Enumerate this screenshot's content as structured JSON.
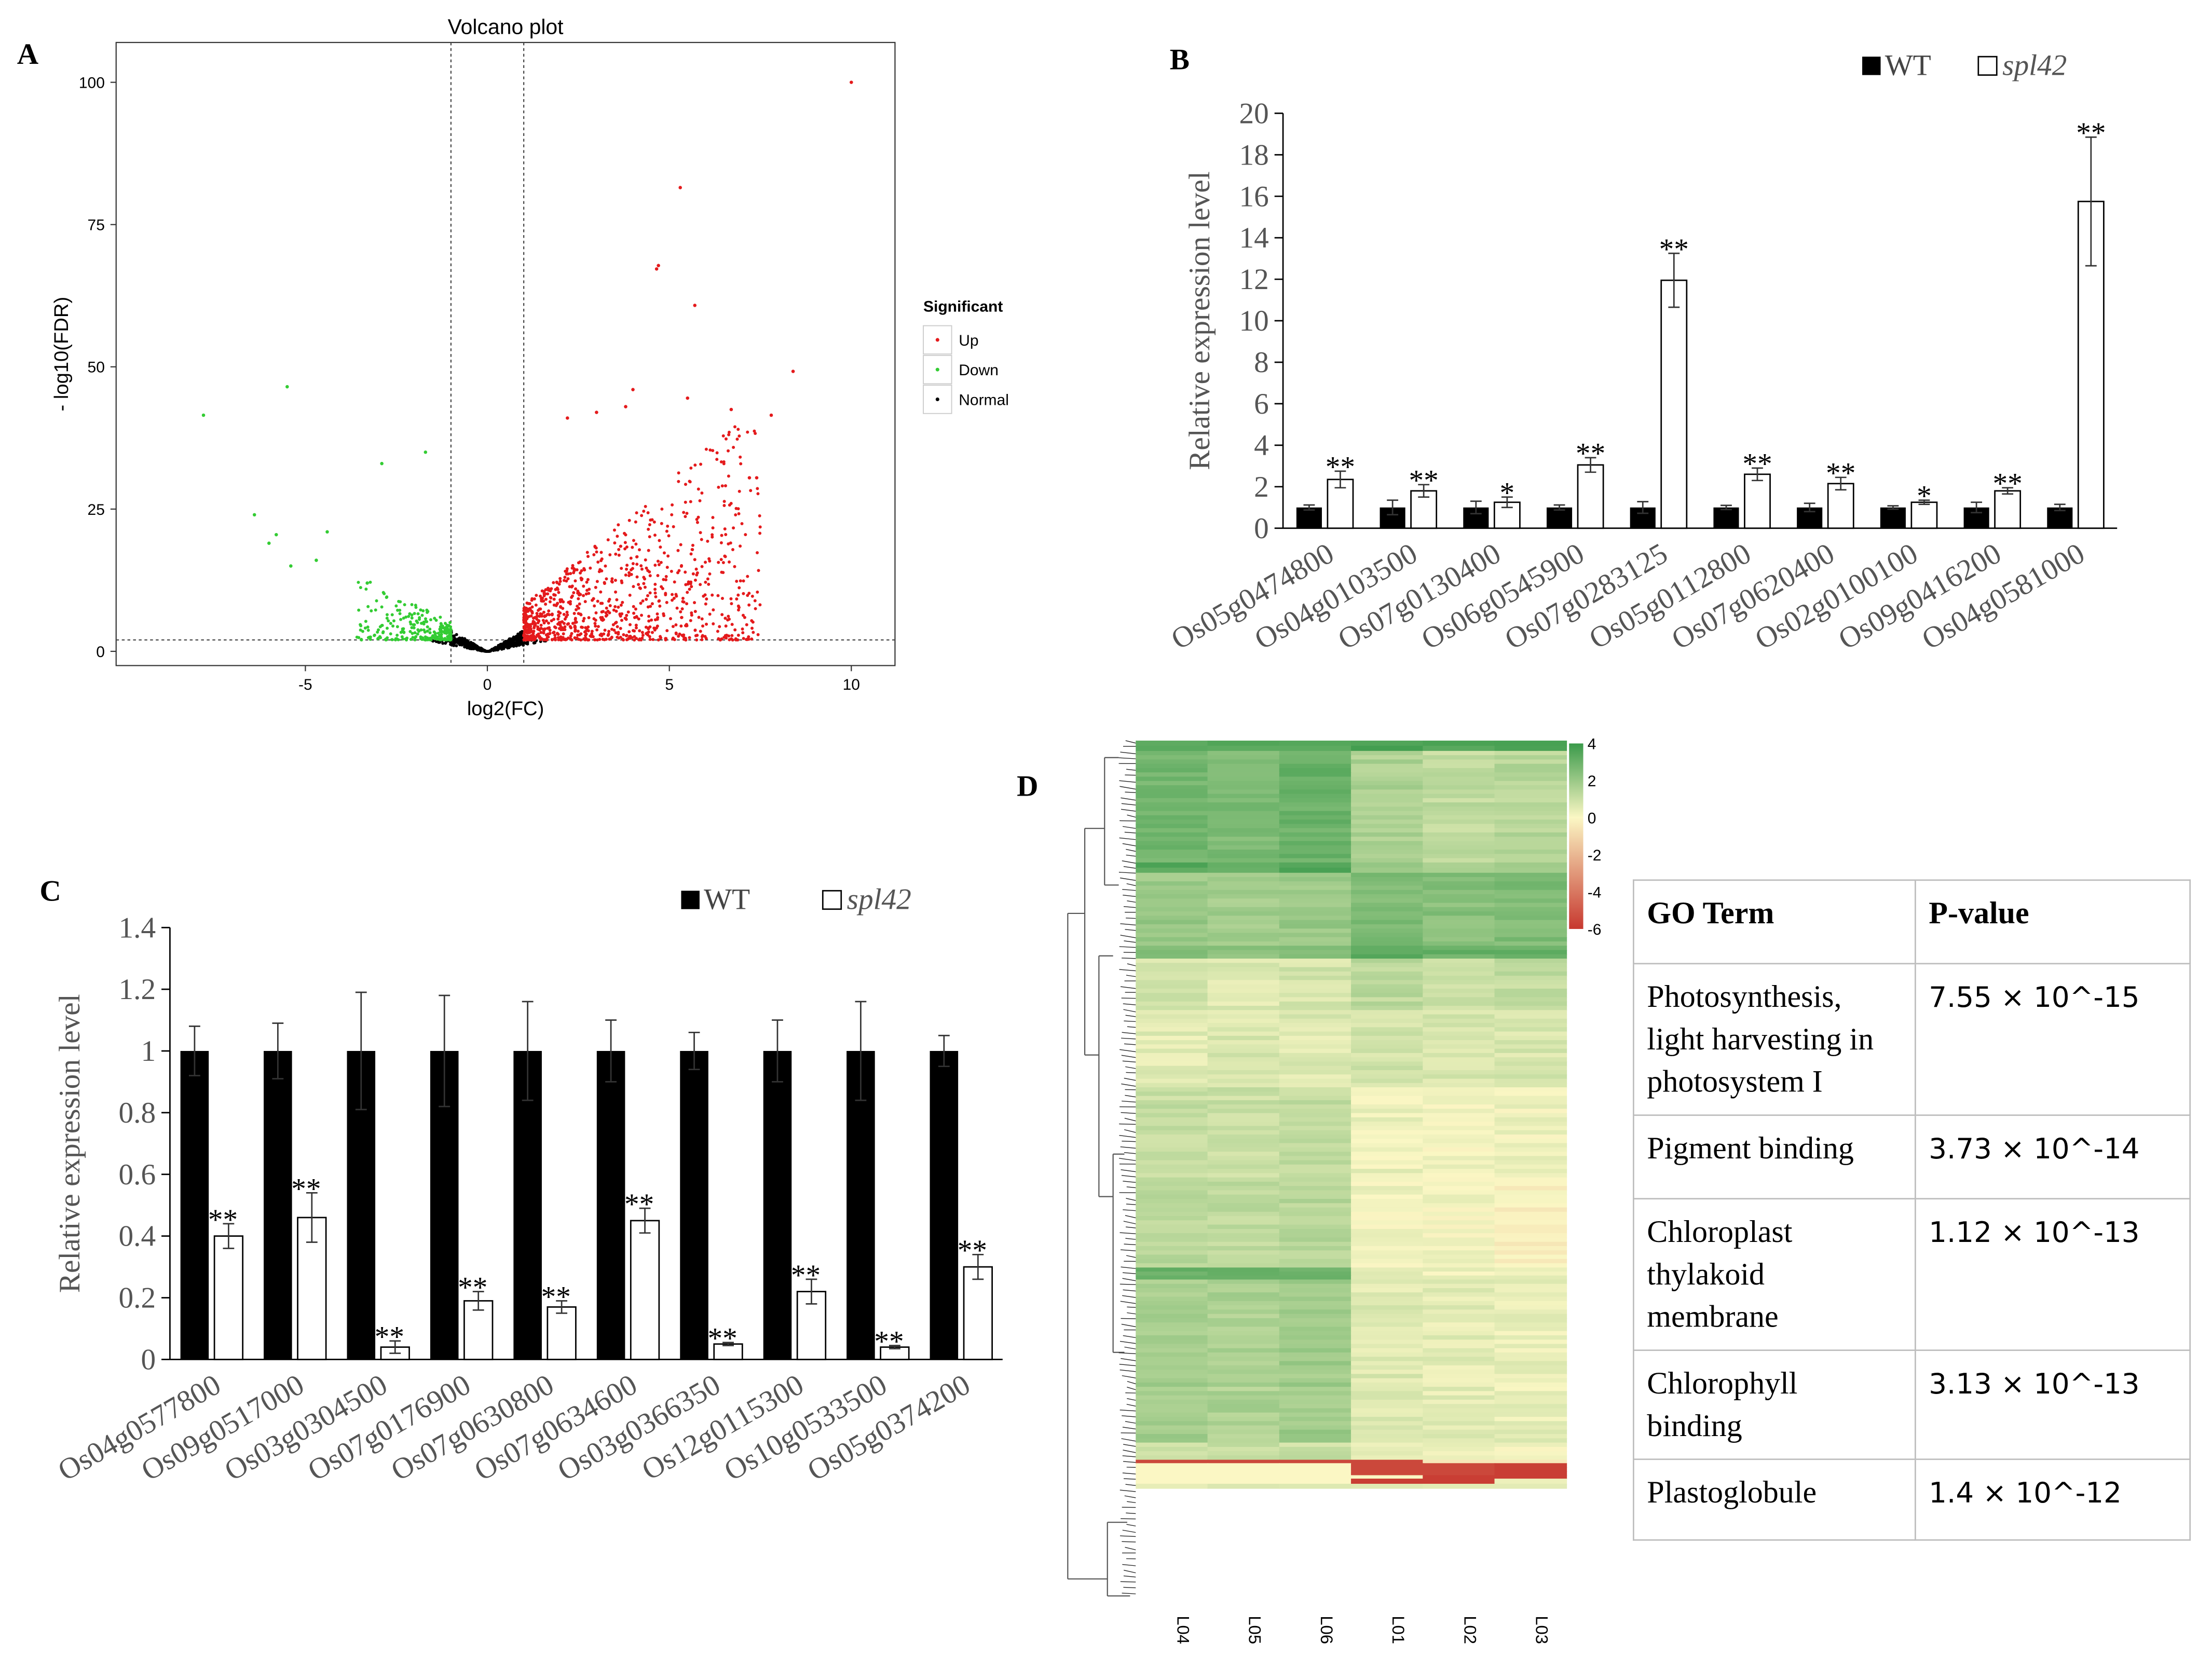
{
  "panel_labels": {
    "a": "A",
    "b": "B",
    "c": "C",
    "d": "D"
  },
  "colors": {
    "up": "#e41a1c",
    "down": "#33cc33",
    "normal": "#000000",
    "heat_high": "#3a9a4a",
    "heat_mid": "#fbf7c4",
    "heat_low": "#c7382f"
  },
  "chart_data": [
    {
      "id": "A",
      "type": "scatter",
      "title": "Volcano plot",
      "xlabel": "log2(FC)",
      "ylabel": "- log10(FDR)",
      "xlim": [
        -10.2,
        11.2
      ],
      "ylim": [
        -2.5,
        107
      ],
      "xticks": [
        -5,
        0,
        5,
        10
      ],
      "yticks": [
        0,
        25,
        50,
        75,
        100
      ],
      "thresholds": {
        "log2fc": [
          -1,
          1
        ],
        "neg_log10_fdr": 2
      },
      "legend": {
        "title": "Significant",
        "entries": [
          "Up",
          "Down",
          "Normal"
        ],
        "placement": "right"
      },
      "highlight_points": {
        "up": [
          [
            10,
            100
          ],
          [
            5.3,
            81.5
          ],
          [
            4.7,
            67.8
          ],
          [
            4.65,
            67.2
          ],
          [
            5.7,
            60.8
          ],
          [
            8.4,
            49.2
          ],
          [
            5.5,
            44.5
          ],
          [
            4,
            46
          ],
          [
            6.7,
            42.5
          ],
          [
            7.8,
            41.5
          ],
          [
            7.2,
            30.5
          ],
          [
            7.4,
            30.5
          ],
          [
            3.8,
            43
          ],
          [
            3,
            42
          ],
          [
            2.2,
            41
          ]
        ],
        "down": [
          [
            -7.8,
            41.5
          ],
          [
            -5.5,
            46.5
          ],
          [
            -6.4,
            24
          ],
          [
            -5.8,
            20.5
          ],
          [
            -6,
            19
          ],
          [
            -5.4,
            15
          ],
          [
            -4.4,
            21
          ],
          [
            -2.9,
            33
          ],
          [
            -1.7,
            35
          ],
          [
            -3.3,
            12
          ],
          [
            -4.7,
            16
          ]
        ]
      }
    },
    {
      "id": "B",
      "type": "bar",
      "categories": [
        "Os05g0474800",
        "Os04g0103500",
        "Os07g0130400",
        "Os06g0545900",
        "Os07g0283125",
        "Os05g0112800",
        "Os07g0620400",
        "Os02g0100100",
        "Os09g0416200",
        "Os04g0581000"
      ],
      "series": [
        {
          "name": "WT",
          "values": [
            1,
            1,
            1,
            1,
            1,
            1,
            1,
            1,
            1,
            1
          ],
          "errors": [
            0.12,
            0.35,
            0.3,
            0.12,
            0.28,
            0.1,
            0.2,
            0.08,
            0.25,
            0.15
          ]
        },
        {
          "name": "spl42",
          "values": [
            2.35,
            1.8,
            1.25,
            3.05,
            11.95,
            2.6,
            2.15,
            1.25,
            1.8,
            15.75
          ],
          "errors": [
            0.4,
            0.3,
            0.25,
            0.35,
            1.3,
            0.3,
            0.3,
            0.1,
            0.15,
            3.1
          ]
        }
      ],
      "significance": [
        "**",
        "**",
        "*",
        "**",
        "**",
        "**",
        "**",
        "*",
        "**",
        "**"
      ],
      "ylabel": "Relative expression level",
      "ylim": [
        0,
        20
      ],
      "yticks": [
        0,
        2,
        4,
        6,
        8,
        10,
        12,
        14,
        16,
        18,
        20
      ]
    },
    {
      "id": "C",
      "type": "bar",
      "categories": [
        "Os04g0577800",
        "Os09g0517000",
        "Os03g0304500",
        "Os07g0176900",
        "Os07g0630800",
        "Os07g0634600",
        "Os03g0366350",
        "Os12g0115300",
        "Os10g0533500",
        "Os05g0374200"
      ],
      "series": [
        {
          "name": "WT",
          "values": [
            1,
            1,
            1,
            1,
            1,
            1,
            1,
            1,
            1,
            1
          ],
          "errors": [
            0.08,
            0.09,
            0.19,
            0.18,
            0.16,
            0.1,
            0.06,
            0.1,
            0.16,
            0.05
          ]
        },
        {
          "name": "spl42",
          "values": [
            0.4,
            0.46,
            0.04,
            0.19,
            0.17,
            0.45,
            0.05,
            0.22,
            0.04,
            0.3
          ],
          "errors": [
            0.04,
            0.08,
            0.02,
            0.03,
            0.02,
            0.04,
            0.005,
            0.04,
            0.005,
            0.04
          ]
        }
      ],
      "significance": [
        "**",
        "**",
        "**",
        "**",
        "**",
        "**",
        "**",
        "**",
        "**",
        "**"
      ],
      "ylabel": "Relative expression level",
      "ylim": [
        0,
        1.4
      ],
      "yticks": [
        "0",
        "0.2",
        "0.4",
        "0.6",
        "0.8",
        "1",
        "1.2",
        "1.4"
      ]
    },
    {
      "id": "D",
      "type": "heatmap",
      "columns": [
        "L04",
        "L05",
        "L06",
        "L01",
        "L02",
        "L03"
      ],
      "colorbar": {
        "range": [
          -6,
          4
        ],
        "ticks": [
          "4",
          "2",
          "0",
          "-2",
          "-4",
          "-6"
        ]
      },
      "row_bands": [
        {
          "frac": 0.012,
          "v": [
            3.6,
            3.6,
            3.6,
            3.6,
            3.6,
            3.6
          ]
        },
        {
          "frac": 0.13,
          "v": [
            2.8,
            2.6,
            3,
            1.6,
            1.2,
            1.4
          ]
        },
        {
          "frac": 0.012,
          "v": [
            3.4,
            3.3,
            3.5,
            2,
            1.8,
            1.9
          ]
        },
        {
          "frac": 0.085,
          "v": [
            2,
            1.8,
            2,
            2.6,
            2.4,
            2.6
          ]
        },
        {
          "frac": 0.015,
          "v": [
            2.4,
            2.2,
            2.4,
            3.2,
            3,
            3.1
          ]
        },
        {
          "frac": 0.06,
          "v": [
            0.8,
            0.6,
            0.8,
            1.3,
            1.1,
            1.2
          ]
        },
        {
          "frac": 0.09,
          "v": [
            0.5,
            0.7,
            0.6,
            0.9,
            0.8,
            0.7
          ]
        },
        {
          "frac": 0.11,
          "v": [
            1.1,
            1,
            1.2,
            0.3,
            0.2,
            0.2
          ]
        },
        {
          "frac": 0.1,
          "v": [
            1.4,
            1.3,
            1.4,
            0.2,
            0.1,
            -0.2
          ]
        },
        {
          "frac": 0.014,
          "v": [
            3,
            2.9,
            3.1,
            0.4,
            0.3,
            0.2
          ]
        },
        {
          "frac": 0.19,
          "v": [
            1.8,
            1.6,
            1.9,
            0.6,
            0.5,
            0.4
          ]
        },
        {
          "frac": 0.02,
          "v": [
            1,
            1,
            1,
            0.2,
            0.1,
            0
          ]
        },
        {
          "frac": 0.004,
          "v": [
            -5.5,
            -5.5,
            -5.5,
            -5.5,
            -0.5,
            -0.5
          ]
        },
        {
          "frac": 0.014,
          "v": [
            0,
            0,
            0,
            -5.5,
            -5.5,
            -5.8
          ]
        },
        {
          "frac": 0.004,
          "v": [
            0,
            0,
            0,
            0,
            -5.8,
            -5.8
          ]
        },
        {
          "frac": 0.006,
          "v": [
            0,
            0,
            0,
            -5.8,
            -5.8,
            0.3
          ]
        },
        {
          "frac": 0.005,
          "v": [
            0.5,
            0.5,
            0.5,
            0.5,
            0.5,
            0.5
          ]
        }
      ]
    }
  ],
  "go_table": {
    "headers": [
      "GO Term",
      "P-value"
    ],
    "rows": [
      {
        "term": [
          "Photosynthesis,",
          "light harvesting in",
          "photosystem I"
        ],
        "pvalue": "7.55 × 10^-15"
      },
      {
        "term": [
          "Pigment binding"
        ],
        "pvalue": "3.73 × 10^-14"
      },
      {
        "term": [
          "Chloroplast",
          "thylakoid",
          "membrane"
        ],
        "pvalue": "1.12 × 10^-13"
      },
      {
        "term": [
          "Chlorophyll",
          "binding"
        ],
        "pvalue": "3.13 × 10^-13"
      },
      {
        "term": [
          "Plastoglobule"
        ],
        "pvalue": "1.4 × 10^-12"
      }
    ]
  }
}
